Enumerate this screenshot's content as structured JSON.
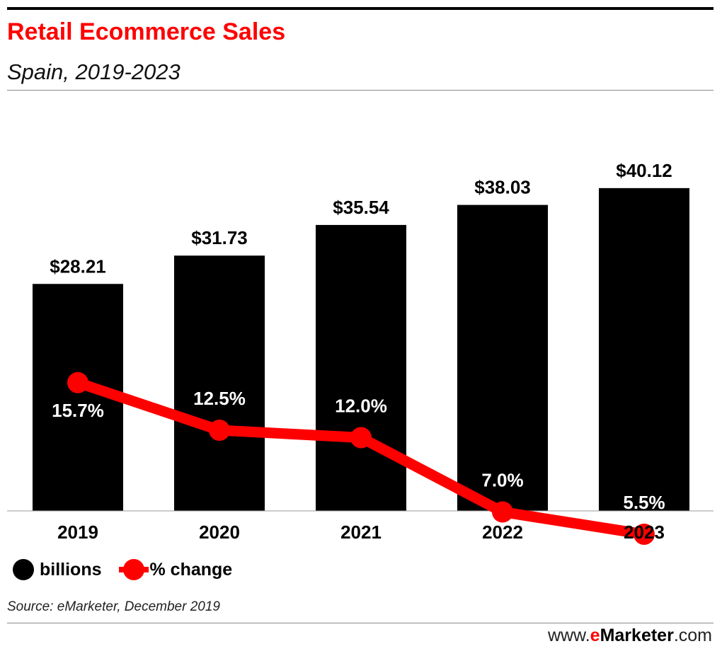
{
  "header": {
    "title": "Retail Ecommerce Sales",
    "subtitle": "Spain, 2019-2023"
  },
  "chart_data": {
    "type": "bar",
    "title": "Retail Ecommerce Sales",
    "subtitle": "Spain, 2019-2023",
    "categories": [
      "2019",
      "2020",
      "2021",
      "2022",
      "2023"
    ],
    "series": [
      {
        "name": "billions",
        "type": "bar",
        "values": [
          28.21,
          31.73,
          35.54,
          38.03,
          40.12
        ],
        "labels": [
          "$28.21",
          "$31.73",
          "$35.54",
          "$38.03",
          "$40.12"
        ],
        "color": "#000000"
      },
      {
        "name": "% change",
        "type": "line",
        "values": [
          15.7,
          12.5,
          12.0,
          7.0,
          5.5
        ],
        "labels": [
          "15.7%",
          "12.5%",
          "12.0%",
          "7.0%",
          "5.5%"
        ],
        "color": "#ff0000"
      }
    ],
    "ylim_bars": [
      0,
      45
    ],
    "legend_position": "bottom-left",
    "grid": false
  },
  "legend": {
    "bars_label": "billions",
    "line_label": "% change"
  },
  "footer": {
    "source": "Source: eMarketer, December 2019",
    "brand_prefix": "www.",
    "brand_e": "e",
    "brand_main": "Marketer",
    "brand_suffix": ".com"
  },
  "colors": {
    "accent": "#ff0000",
    "bar": "#000000"
  }
}
